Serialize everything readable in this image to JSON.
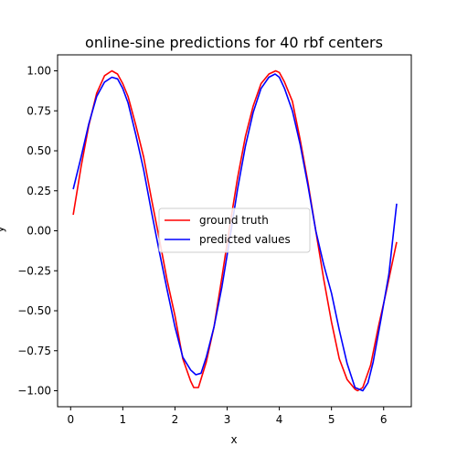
{
  "chart_data": {
    "type": "line",
    "title": "online-sine predictions for 40 rbf centers",
    "xlabel": "x",
    "ylabel": "y",
    "xlim": [
      -0.25,
      6.53
    ],
    "ylim": [
      -1.1,
      1.1
    ],
    "xticks": [
      0,
      1,
      2,
      3,
      4,
      5,
      6
    ],
    "yticks": [
      -1.0,
      -0.75,
      -0.5,
      -0.25,
      0.0,
      0.25,
      0.5,
      0.75,
      1.0
    ],
    "xtick_labels": [
      "0",
      "1",
      "2",
      "3",
      "4",
      "5",
      "6"
    ],
    "ytick_labels": [
      "−1.00",
      "−0.75",
      "−0.50",
      "−0.25",
      "0.00",
      "0.25",
      "0.50",
      "0.75",
      "1.00"
    ],
    "grid": false,
    "legend_position": "center-left",
    "series": [
      {
        "name": "ground truth",
        "color": "#ff0000",
        "x": [
          0.05,
          0.2,
          0.35,
          0.5,
          0.65,
          0.79,
          0.9,
          1.0,
          1.1,
          1.25,
          1.4,
          1.55,
          1.7,
          1.85,
          2.0,
          2.15,
          2.3,
          2.36,
          2.45,
          2.6,
          2.75,
          2.9,
          3.05,
          3.2,
          3.35,
          3.5,
          3.65,
          3.8,
          3.93,
          4.0,
          4.1,
          4.25,
          4.4,
          4.55,
          4.7,
          4.85,
          5.0,
          5.15,
          5.3,
          5.45,
          5.5,
          5.6,
          5.75,
          5.9,
          6.05,
          6.25
        ],
        "y": [
          0.1,
          0.4,
          0.66,
          0.86,
          0.97,
          1.0,
          0.98,
          0.92,
          0.84,
          0.66,
          0.46,
          0.2,
          -0.05,
          -0.31,
          -0.53,
          -0.8,
          -0.94,
          -0.98,
          -0.98,
          -0.82,
          -0.6,
          -0.29,
          0.03,
          0.33,
          0.59,
          0.78,
          0.92,
          0.98,
          1.0,
          0.99,
          0.93,
          0.81,
          0.57,
          0.3,
          0.0,
          -0.3,
          -0.57,
          -0.8,
          -0.93,
          -0.99,
          -1.0,
          -0.98,
          -0.84,
          -0.6,
          -0.38,
          -0.07
        ]
      },
      {
        "name": "predicted values",
        "color": "#0000ff",
        "x": [
          0.05,
          0.2,
          0.35,
          0.5,
          0.65,
          0.79,
          0.9,
          1.0,
          1.1,
          1.25,
          1.4,
          1.55,
          1.7,
          1.85,
          2.0,
          2.15,
          2.3,
          2.4,
          2.5,
          2.6,
          2.75,
          2.9,
          3.05,
          3.2,
          3.35,
          3.5,
          3.65,
          3.8,
          3.92,
          4.0,
          4.1,
          4.25,
          4.4,
          4.55,
          4.7,
          4.85,
          5.0,
          5.15,
          5.3,
          5.45,
          5.6,
          5.7,
          5.8,
          5.95,
          6.1,
          6.25
        ],
        "y": [
          0.26,
          0.46,
          0.67,
          0.84,
          0.93,
          0.96,
          0.95,
          0.89,
          0.8,
          0.6,
          0.38,
          0.12,
          -0.13,
          -0.37,
          -0.6,
          -0.79,
          -0.87,
          -0.9,
          -0.89,
          -0.79,
          -0.6,
          -0.35,
          -0.05,
          0.26,
          0.53,
          0.74,
          0.89,
          0.96,
          0.98,
          0.96,
          0.89,
          0.75,
          0.54,
          0.28,
          0.0,
          -0.21,
          -0.39,
          -0.62,
          -0.83,
          -0.98,
          -1.0,
          -0.95,
          -0.82,
          -0.55,
          -0.27,
          0.17
        ]
      }
    ]
  }
}
